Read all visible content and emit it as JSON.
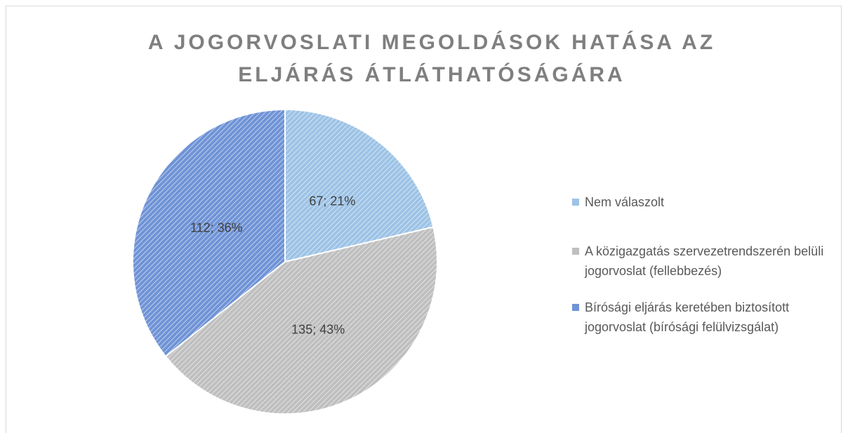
{
  "chart_data": {
    "type": "pie",
    "title": "A JOGORVOSLATI MEGOLDÁSOK HATÁSA AZ ELJÁRÁS ÁTLÁTHATÓSÁGÁRA",
    "categories": [
      "Nem válaszolt",
      "A közigazgatás szervezetrendszerén belüli jogorvoslat (fellebbezés)",
      "Bírósági eljárás keretében biztosított jogorvoslat (bírósági felülvizsgálat)"
    ],
    "values": [
      67,
      135,
      112
    ],
    "value_labels": [
      "67; 21%",
      "135; 43%",
      "112; 36%"
    ],
    "colors": [
      "#9dc3e6",
      "#bfbfbf",
      "#6f93d6"
    ],
    "legend": "right"
  }
}
